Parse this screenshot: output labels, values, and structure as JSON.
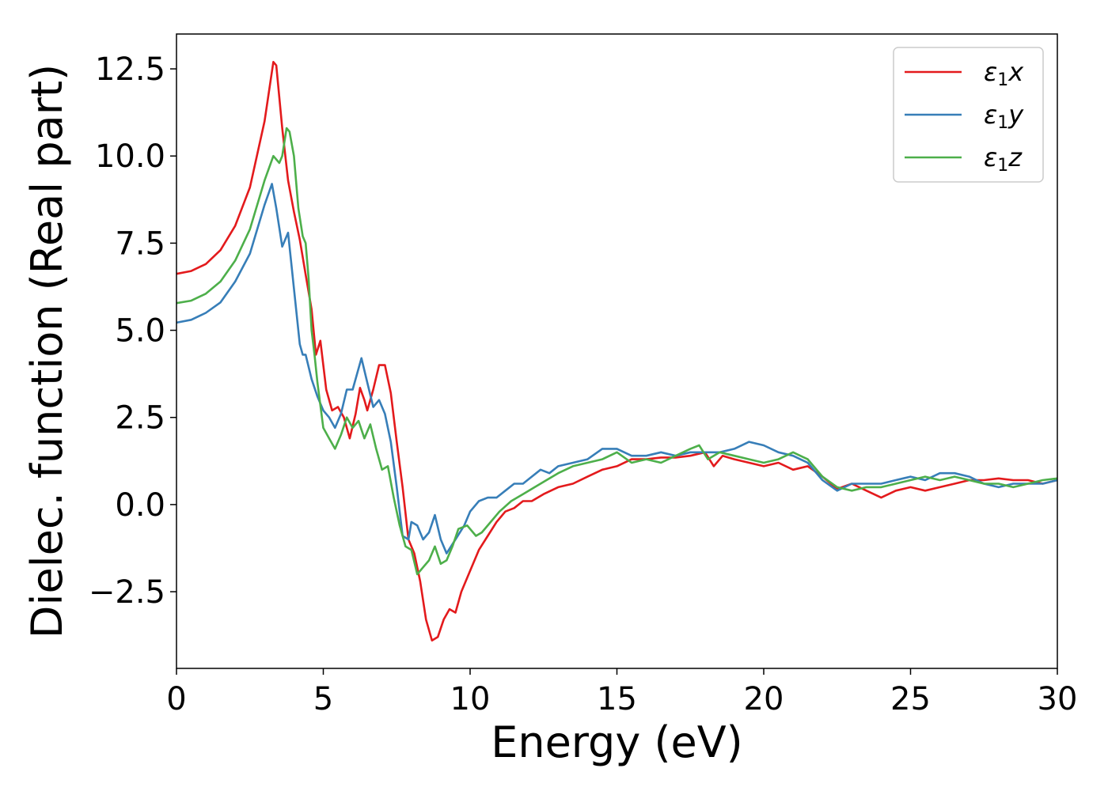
{
  "chart_data": {
    "type": "line",
    "title": "",
    "xlabel": "Energy (eV)",
    "ylabel": "Dielec. function (Real part)",
    "xlim": [
      0,
      30
    ],
    "ylim": [
      -4.7,
      13.5
    ],
    "xticks": [
      0,
      5,
      10,
      15,
      20,
      25,
      30
    ],
    "xtick_labels": [
      "0",
      "5",
      "10",
      "15",
      "20",
      "25",
      "30"
    ],
    "yticks": [
      -2.5,
      0.0,
      2.5,
      5.0,
      7.5,
      10.0,
      12.5
    ],
    "ytick_labels": [
      "−2.5",
      "0.0",
      "2.5",
      "5.0",
      "7.5",
      "10.0",
      "12.5"
    ],
    "grid": false,
    "legend_position": "top-right",
    "series": [
      {
        "name": "ε₁x",
        "legend_main": "ε",
        "legend_sub": "1",
        "legend_suffix": "x",
        "color": "#e31a1c",
        "points": [
          [
            0,
            6.62
          ],
          [
            0.5,
            6.7
          ],
          [
            1,
            6.9
          ],
          [
            1.5,
            7.3
          ],
          [
            2,
            8.0
          ],
          [
            2.5,
            9.1
          ],
          [
            3,
            11.0
          ],
          [
            3.3,
            12.7
          ],
          [
            3.4,
            12.6
          ],
          [
            3.6,
            10.8
          ],
          [
            3.8,
            9.3
          ],
          [
            4.0,
            8.4
          ],
          [
            4.2,
            7.6
          ],
          [
            4.4,
            6.6
          ],
          [
            4.6,
            5.6
          ],
          [
            4.75,
            4.3
          ],
          [
            4.9,
            4.7
          ],
          [
            5.1,
            3.3
          ],
          [
            5.3,
            2.7
          ],
          [
            5.5,
            2.8
          ],
          [
            5.7,
            2.5
          ],
          [
            5.9,
            1.9
          ],
          [
            6.1,
            2.6
          ],
          [
            6.25,
            3.35
          ],
          [
            6.4,
            3.0
          ],
          [
            6.5,
            2.7
          ],
          [
            6.7,
            3.3
          ],
          [
            6.9,
            4.0
          ],
          [
            7.1,
            4.0
          ],
          [
            7.3,
            3.2
          ],
          [
            7.5,
            1.8
          ],
          [
            7.7,
            0.5
          ],
          [
            7.9,
            -1.0
          ],
          [
            8.1,
            -1.4
          ],
          [
            8.3,
            -2.2
          ],
          [
            8.5,
            -3.3
          ],
          [
            8.7,
            -3.9
          ],
          [
            8.9,
            -3.8
          ],
          [
            9.1,
            -3.3
          ],
          [
            9.3,
            -3.0
          ],
          [
            9.5,
            -3.1
          ],
          [
            9.7,
            -2.5
          ],
          [
            10.0,
            -1.9
          ],
          [
            10.3,
            -1.3
          ],
          [
            10.6,
            -0.9
          ],
          [
            10.9,
            -0.5
          ],
          [
            11.2,
            -0.2
          ],
          [
            11.5,
            -0.1
          ],
          [
            11.8,
            0.1
          ],
          [
            12.1,
            0.1
          ],
          [
            12.5,
            0.3
          ],
          [
            13,
            0.5
          ],
          [
            13.5,
            0.6
          ],
          [
            14,
            0.8
          ],
          [
            14.5,
            1.0
          ],
          [
            15,
            1.1
          ],
          [
            15.5,
            1.3
          ],
          [
            16,
            1.3
          ],
          [
            16.5,
            1.35
          ],
          [
            17,
            1.35
          ],
          [
            17.5,
            1.4
          ],
          [
            18,
            1.5
          ],
          [
            18.3,
            1.1
          ],
          [
            18.6,
            1.4
          ],
          [
            19,
            1.3
          ],
          [
            19.5,
            1.2
          ],
          [
            20,
            1.1
          ],
          [
            20.5,
            1.2
          ],
          [
            21,
            1.0
          ],
          [
            21.5,
            1.1
          ],
          [
            22,
            0.8
          ],
          [
            22.5,
            0.45
          ],
          [
            23,
            0.6
          ],
          [
            23.5,
            0.4
          ],
          [
            24,
            0.2
          ],
          [
            24.5,
            0.4
          ],
          [
            25,
            0.5
          ],
          [
            25.5,
            0.4
          ],
          [
            26,
            0.5
          ],
          [
            26.5,
            0.6
          ],
          [
            27,
            0.7
          ],
          [
            27.5,
            0.7
          ],
          [
            28,
            0.75
          ],
          [
            28.5,
            0.7
          ],
          [
            29,
            0.7
          ],
          [
            29.5,
            0.6
          ],
          [
            30,
            0.7
          ]
        ]
      },
      {
        "name": "ε₁y",
        "legend_main": "ε",
        "legend_sub": "1",
        "legend_suffix": "y",
        "color": "#377eb8",
        "points": [
          [
            0,
            5.22
          ],
          [
            0.5,
            5.3
          ],
          [
            1,
            5.5
          ],
          [
            1.5,
            5.8
          ],
          [
            2,
            6.4
          ],
          [
            2.5,
            7.2
          ],
          [
            3,
            8.6
          ],
          [
            3.25,
            9.2
          ],
          [
            3.4,
            8.5
          ],
          [
            3.6,
            7.4
          ],
          [
            3.7,
            7.6
          ],
          [
            3.8,
            7.8
          ],
          [
            3.9,
            7.0
          ],
          [
            4.0,
            6.2
          ],
          [
            4.2,
            4.6
          ],
          [
            4.3,
            4.3
          ],
          [
            4.4,
            4.3
          ],
          [
            4.6,
            3.6
          ],
          [
            4.8,
            3.1
          ],
          [
            5.0,
            2.7
          ],
          [
            5.2,
            2.5
          ],
          [
            5.4,
            2.2
          ],
          [
            5.6,
            2.6
          ],
          [
            5.8,
            3.3
          ],
          [
            6.0,
            3.3
          ],
          [
            6.3,
            4.2
          ],
          [
            6.5,
            3.5
          ],
          [
            6.7,
            2.8
          ],
          [
            6.9,
            3.0
          ],
          [
            7.1,
            2.6
          ],
          [
            7.3,
            1.8
          ],
          [
            7.5,
            0.5
          ],
          [
            7.7,
            -0.9
          ],
          [
            7.9,
            -1.0
          ],
          [
            8.0,
            -0.5
          ],
          [
            8.2,
            -0.6
          ],
          [
            8.4,
            -1.0
          ],
          [
            8.6,
            -0.8
          ],
          [
            8.8,
            -0.3
          ],
          [
            9.0,
            -1.0
          ],
          [
            9.2,
            -1.4
          ],
          [
            9.5,
            -1.0
          ],
          [
            9.8,
            -0.6
          ],
          [
            10.0,
            -0.2
          ],
          [
            10.3,
            0.1
          ],
          [
            10.6,
            0.2
          ],
          [
            10.9,
            0.2
          ],
          [
            11.2,
            0.4
          ],
          [
            11.5,
            0.6
          ],
          [
            11.8,
            0.6
          ],
          [
            12.1,
            0.8
          ],
          [
            12.4,
            1.0
          ],
          [
            12.7,
            0.9
          ],
          [
            13,
            1.1
          ],
          [
            13.5,
            1.2
          ],
          [
            14,
            1.3
          ],
          [
            14.5,
            1.6
          ],
          [
            15,
            1.6
          ],
          [
            15.5,
            1.4
          ],
          [
            16,
            1.4
          ],
          [
            16.5,
            1.5
          ],
          [
            17,
            1.4
          ],
          [
            17.5,
            1.5
          ],
          [
            18,
            1.5
          ],
          [
            18.5,
            1.5
          ],
          [
            19,
            1.6
          ],
          [
            19.5,
            1.8
          ],
          [
            20,
            1.7
          ],
          [
            20.5,
            1.5
          ],
          [
            21,
            1.4
          ],
          [
            21.5,
            1.2
          ],
          [
            22,
            0.7
          ],
          [
            22.5,
            0.4
          ],
          [
            23,
            0.6
          ],
          [
            23.5,
            0.6
          ],
          [
            24,
            0.6
          ],
          [
            24.5,
            0.7
          ],
          [
            25,
            0.8
          ],
          [
            25.5,
            0.7
          ],
          [
            26,
            0.9
          ],
          [
            26.5,
            0.9
          ],
          [
            27,
            0.8
          ],
          [
            27.5,
            0.6
          ],
          [
            28,
            0.5
          ],
          [
            28.5,
            0.6
          ],
          [
            29,
            0.6
          ],
          [
            29.5,
            0.6
          ],
          [
            30,
            0.7
          ]
        ]
      },
      {
        "name": "ε₁z",
        "legend_main": "ε",
        "legend_sub": "1",
        "legend_suffix": "z",
        "color": "#4daf4a",
        "points": [
          [
            0,
            5.78
          ],
          [
            0.5,
            5.85
          ],
          [
            1,
            6.05
          ],
          [
            1.5,
            6.4
          ],
          [
            2,
            7.0
          ],
          [
            2.5,
            7.9
          ],
          [
            3,
            9.3
          ],
          [
            3.3,
            10.0
          ],
          [
            3.5,
            9.8
          ],
          [
            3.6,
            10.0
          ],
          [
            3.75,
            10.8
          ],
          [
            3.85,
            10.7
          ],
          [
            4.0,
            10.0
          ],
          [
            4.15,
            8.5
          ],
          [
            4.3,
            7.7
          ],
          [
            4.4,
            7.5
          ],
          [
            4.5,
            6.5
          ],
          [
            4.6,
            5.0
          ],
          [
            4.7,
            4.3
          ],
          [
            4.8,
            3.5
          ],
          [
            5.0,
            2.2
          ],
          [
            5.2,
            1.9
          ],
          [
            5.4,
            1.6
          ],
          [
            5.6,
            2.0
          ],
          [
            5.8,
            2.5
          ],
          [
            6.0,
            2.2
          ],
          [
            6.2,
            2.4
          ],
          [
            6.4,
            1.9
          ],
          [
            6.6,
            2.3
          ],
          [
            6.8,
            1.6
          ],
          [
            7.0,
            1.0
          ],
          [
            7.2,
            1.1
          ],
          [
            7.4,
            0.2
          ],
          [
            7.6,
            -0.6
          ],
          [
            7.8,
            -1.2
          ],
          [
            8.0,
            -1.3
          ],
          [
            8.2,
            -2.0
          ],
          [
            8.4,
            -1.8
          ],
          [
            8.6,
            -1.6
          ],
          [
            8.8,
            -1.2
          ],
          [
            9.0,
            -1.7
          ],
          [
            9.2,
            -1.6
          ],
          [
            9.4,
            -1.2
          ],
          [
            9.6,
            -0.7
          ],
          [
            9.9,
            -0.6
          ],
          [
            10.2,
            -0.9
          ],
          [
            10.4,
            -0.8
          ],
          [
            10.7,
            -0.5
          ],
          [
            11.0,
            -0.2
          ],
          [
            11.4,
            0.1
          ],
          [
            11.8,
            0.3
          ],
          [
            12.2,
            0.5
          ],
          [
            12.6,
            0.7
          ],
          [
            13,
            0.9
          ],
          [
            13.5,
            1.1
          ],
          [
            14,
            1.2
          ],
          [
            14.5,
            1.3
          ],
          [
            15,
            1.5
          ],
          [
            15.5,
            1.2
          ],
          [
            16,
            1.3
          ],
          [
            16.5,
            1.2
          ],
          [
            17,
            1.4
          ],
          [
            17.5,
            1.6
          ],
          [
            17.8,
            1.7
          ],
          [
            18.1,
            1.3
          ],
          [
            18.5,
            1.5
          ],
          [
            19,
            1.4
          ],
          [
            19.5,
            1.3
          ],
          [
            20,
            1.2
          ],
          [
            20.5,
            1.3
          ],
          [
            21,
            1.5
          ],
          [
            21.5,
            1.3
          ],
          [
            22,
            0.8
          ],
          [
            22.5,
            0.5
          ],
          [
            23,
            0.4
          ],
          [
            23.5,
            0.5
          ],
          [
            24,
            0.5
          ],
          [
            24.5,
            0.6
          ],
          [
            25,
            0.7
          ],
          [
            25.5,
            0.8
          ],
          [
            26,
            0.7
          ],
          [
            26.5,
            0.8
          ],
          [
            27,
            0.7
          ],
          [
            27.5,
            0.6
          ],
          [
            28,
            0.6
          ],
          [
            28.5,
            0.5
          ],
          [
            29,
            0.6
          ],
          [
            29.5,
            0.7
          ],
          [
            30,
            0.75
          ]
        ]
      }
    ]
  }
}
